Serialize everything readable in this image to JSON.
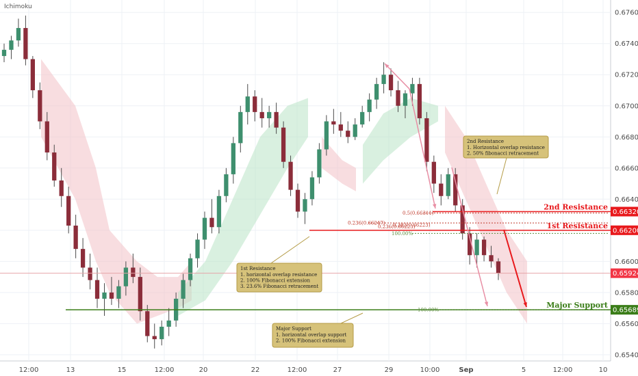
{
  "chart_data": {
    "type": "candlestick",
    "indicator": "Ichimoku",
    "grid": true,
    "ylim": [
      0.6536,
      0.6768
    ],
    "y_ticks": [
      "0.67600",
      "0.67400",
      "0.67200",
      "0.67000",
      "0.66800",
      "0.66600",
      "0.66400",
      "0.66200",
      "0.66000",
      "0.65800",
      "0.65600",
      "0.65400"
    ],
    "x_ticks": [
      "12:00",
      "13",
      "15",
      "12:00",
      "20",
      "22",
      "12:00",
      "27",
      "29",
      "10:00",
      "Sep",
      "5",
      "12:00",
      "10"
    ],
    "candles": [
      {
        "o": 0.6732,
        "h": 0.674,
        "l": 0.6728,
        "c": 0.6736
      },
      {
        "o": 0.6736,
        "h": 0.6745,
        "l": 0.673,
        "c": 0.6742
      },
      {
        "o": 0.6742,
        "h": 0.6756,
        "l": 0.6738,
        "c": 0.675
      },
      {
        "o": 0.675,
        "h": 0.6758,
        "l": 0.6726,
        "c": 0.673
      },
      {
        "o": 0.673,
        "h": 0.6732,
        "l": 0.6705,
        "c": 0.671
      },
      {
        "o": 0.671,
        "h": 0.6715,
        "l": 0.6685,
        "c": 0.669
      },
      {
        "o": 0.669,
        "h": 0.6696,
        "l": 0.6665,
        "c": 0.667
      },
      {
        "o": 0.667,
        "h": 0.6675,
        "l": 0.6648,
        "c": 0.6652
      },
      {
        "o": 0.6652,
        "h": 0.666,
        "l": 0.6635,
        "c": 0.6642
      },
      {
        "o": 0.6642,
        "h": 0.6648,
        "l": 0.6618,
        "c": 0.6623
      },
      {
        "o": 0.6623,
        "h": 0.663,
        "l": 0.6602,
        "c": 0.6608
      },
      {
        "o": 0.6608,
        "h": 0.6615,
        "l": 0.659,
        "c": 0.6596
      },
      {
        "o": 0.6596,
        "h": 0.6605,
        "l": 0.6582,
        "c": 0.6588
      },
      {
        "o": 0.6588,
        "h": 0.6596,
        "l": 0.657,
        "c": 0.6576
      },
      {
        "o": 0.6576,
        "h": 0.6586,
        "l": 0.6565,
        "c": 0.658
      },
      {
        "o": 0.658,
        "h": 0.659,
        "l": 0.6572,
        "c": 0.6576
      },
      {
        "o": 0.6576,
        "h": 0.6588,
        "l": 0.657,
        "c": 0.6584
      },
      {
        "o": 0.6584,
        "h": 0.66,
        "l": 0.6578,
        "c": 0.6596
      },
      {
        "o": 0.6596,
        "h": 0.6605,
        "l": 0.6586,
        "c": 0.659
      },
      {
        "o": 0.659,
        "h": 0.6596,
        "l": 0.6562,
        "c": 0.6568
      },
      {
        "o": 0.6568,
        "h": 0.6572,
        "l": 0.6548,
        "c": 0.6552
      },
      {
        "o": 0.6552,
        "h": 0.656,
        "l": 0.6544,
        "c": 0.655
      },
      {
        "o": 0.655,
        "h": 0.6562,
        "l": 0.6546,
        "c": 0.6558
      },
      {
        "o": 0.6558,
        "h": 0.657,
        "l": 0.6552,
        "c": 0.6562
      },
      {
        "o": 0.6562,
        "h": 0.658,
        "l": 0.6558,
        "c": 0.6576
      },
      {
        "o": 0.6576,
        "h": 0.6592,
        "l": 0.657,
        "c": 0.6588
      },
      {
        "o": 0.6588,
        "h": 0.6605,
        "l": 0.6584,
        "c": 0.6602
      },
      {
        "o": 0.6602,
        "h": 0.6618,
        "l": 0.6596,
        "c": 0.6614
      },
      {
        "o": 0.6614,
        "h": 0.6632,
        "l": 0.6608,
        "c": 0.6628
      },
      {
        "o": 0.6628,
        "h": 0.664,
        "l": 0.6618,
        "c": 0.6622
      },
      {
        "o": 0.6622,
        "h": 0.6646,
        "l": 0.6618,
        "c": 0.6642
      },
      {
        "o": 0.6642,
        "h": 0.666,
        "l": 0.6638,
        "c": 0.6656
      },
      {
        "o": 0.6656,
        "h": 0.668,
        "l": 0.665,
        "c": 0.6676
      },
      {
        "o": 0.6676,
        "h": 0.67,
        "l": 0.667,
        "c": 0.6696
      },
      {
        "o": 0.6696,
        "h": 0.6714,
        "l": 0.6688,
        "c": 0.6706
      },
      {
        "o": 0.6706,
        "h": 0.671,
        "l": 0.669,
        "c": 0.6696
      },
      {
        "o": 0.6696,
        "h": 0.6705,
        "l": 0.6686,
        "c": 0.6692
      },
      {
        "o": 0.6692,
        "h": 0.67,
        "l": 0.6686,
        "c": 0.6696
      },
      {
        "o": 0.6696,
        "h": 0.6702,
        "l": 0.6682,
        "c": 0.6686
      },
      {
        "o": 0.6686,
        "h": 0.669,
        "l": 0.666,
        "c": 0.6664
      },
      {
        "o": 0.6664,
        "h": 0.6668,
        "l": 0.6642,
        "c": 0.6646
      },
      {
        "o": 0.6646,
        "h": 0.665,
        "l": 0.6628,
        "c": 0.6632
      },
      {
        "o": 0.6632,
        "h": 0.6644,
        "l": 0.6624,
        "c": 0.664
      },
      {
        "o": 0.664,
        "h": 0.6658,
        "l": 0.6636,
        "c": 0.6654
      },
      {
        "o": 0.6654,
        "h": 0.6676,
        "l": 0.665,
        "c": 0.6672
      },
      {
        "o": 0.6672,
        "h": 0.6694,
        "l": 0.6668,
        "c": 0.669
      },
      {
        "o": 0.669,
        "h": 0.6698,
        "l": 0.6682,
        "c": 0.6688
      },
      {
        "o": 0.6688,
        "h": 0.6696,
        "l": 0.668,
        "c": 0.6684
      },
      {
        "o": 0.6684,
        "h": 0.669,
        "l": 0.6676,
        "c": 0.668
      },
      {
        "o": 0.668,
        "h": 0.6692,
        "l": 0.6678,
        "c": 0.6688
      },
      {
        "o": 0.6688,
        "h": 0.67,
        "l": 0.6686,
        "c": 0.6696
      },
      {
        "o": 0.6696,
        "h": 0.6708,
        "l": 0.669,
        "c": 0.6704
      },
      {
        "o": 0.6704,
        "h": 0.6718,
        "l": 0.6698,
        "c": 0.6714
      },
      {
        "o": 0.6714,
        "h": 0.6728,
        "l": 0.6708,
        "c": 0.672
      },
      {
        "o": 0.672,
        "h": 0.6724,
        "l": 0.6706,
        "c": 0.671
      },
      {
        "o": 0.671,
        "h": 0.6716,
        "l": 0.6696,
        "c": 0.67
      },
      {
        "o": 0.67,
        "h": 0.671,
        "l": 0.6692,
        "c": 0.6708
      },
      {
        "o": 0.6708,
        "h": 0.6718,
        "l": 0.67,
        "c": 0.6714
      },
      {
        "o": 0.6714,
        "h": 0.6718,
        "l": 0.6688,
        "c": 0.6692
      },
      {
        "o": 0.6692,
        "h": 0.6696,
        "l": 0.6658,
        "c": 0.6664
      },
      {
        "o": 0.6664,
        "h": 0.6668,
        "l": 0.6644,
        "c": 0.665
      },
      {
        "o": 0.665,
        "h": 0.6656,
        "l": 0.6636,
        "c": 0.6642
      },
      {
        "o": 0.6642,
        "h": 0.666,
        "l": 0.664,
        "c": 0.6656
      },
      {
        "o": 0.6656,
        "h": 0.666,
        "l": 0.6632,
        "c": 0.6636
      },
      {
        "o": 0.6636,
        "h": 0.664,
        "l": 0.6614,
        "c": 0.6618
      },
      {
        "o": 0.6618,
        "h": 0.6622,
        "l": 0.6598,
        "c": 0.6604
      },
      {
        "o": 0.6604,
        "h": 0.6618,
        "l": 0.6596,
        "c": 0.6614
      },
      {
        "o": 0.6614,
        "h": 0.6616,
        "l": 0.66,
        "c": 0.6604
      },
      {
        "o": 0.6604,
        "h": 0.661,
        "l": 0.6596,
        "c": 0.66
      },
      {
        "o": 0.66,
        "h": 0.6602,
        "l": 0.6588,
        "c": 0.65924
      }
    ],
    "annotations": {
      "levels": [
        {
          "label": "2nd Resistance",
          "price": 0.6632,
          "tag": "0.66320",
          "color": "#e8191c"
        },
        {
          "label": "1st Resistance",
          "price": 0.662,
          "tag": "0.66200",
          "color": "#e8191c"
        },
        {
          "label": "Major Support",
          "price": 0.65689,
          "tag": "0.65689",
          "color": "#3a7d18"
        }
      ],
      "current_price": {
        "value": 0.65924,
        "tag": "0.65924",
        "color": "#f23645"
      },
      "fib_labels": [
        "0.5(0.66311)",
        "0.236(0.66247)",
        "0.236(0.66223)",
        "0.382(0.66223)",
        "100.00%",
        "100.00%"
      ],
      "notes": [
        {
          "title": "2nd Resistance",
          "lines": [
            "1. Horizontal overlap resistance",
            "2. 50% fibonacci retracement"
          ]
        },
        {
          "title": "1st Resistance",
          "lines": [
            "1. horizontal overlap resistance",
            "2. 100% Fibonacci extension",
            "3. 23.6% Fibonacci retracement"
          ]
        },
        {
          "title": "Major Support",
          "lines": [
            "1. horizontal overlap support",
            "2. 100% Fibonacci extension"
          ]
        }
      ]
    },
    "colors": {
      "up": "#3e8f6e",
      "down": "#8b2d3a",
      "cloud_bull": "#b9e3c6",
      "cloud_bear": "#f3c1c7",
      "grid": "#eef1f6"
    }
  },
  "header": {
    "indicator_label": "Ichimoku"
  }
}
